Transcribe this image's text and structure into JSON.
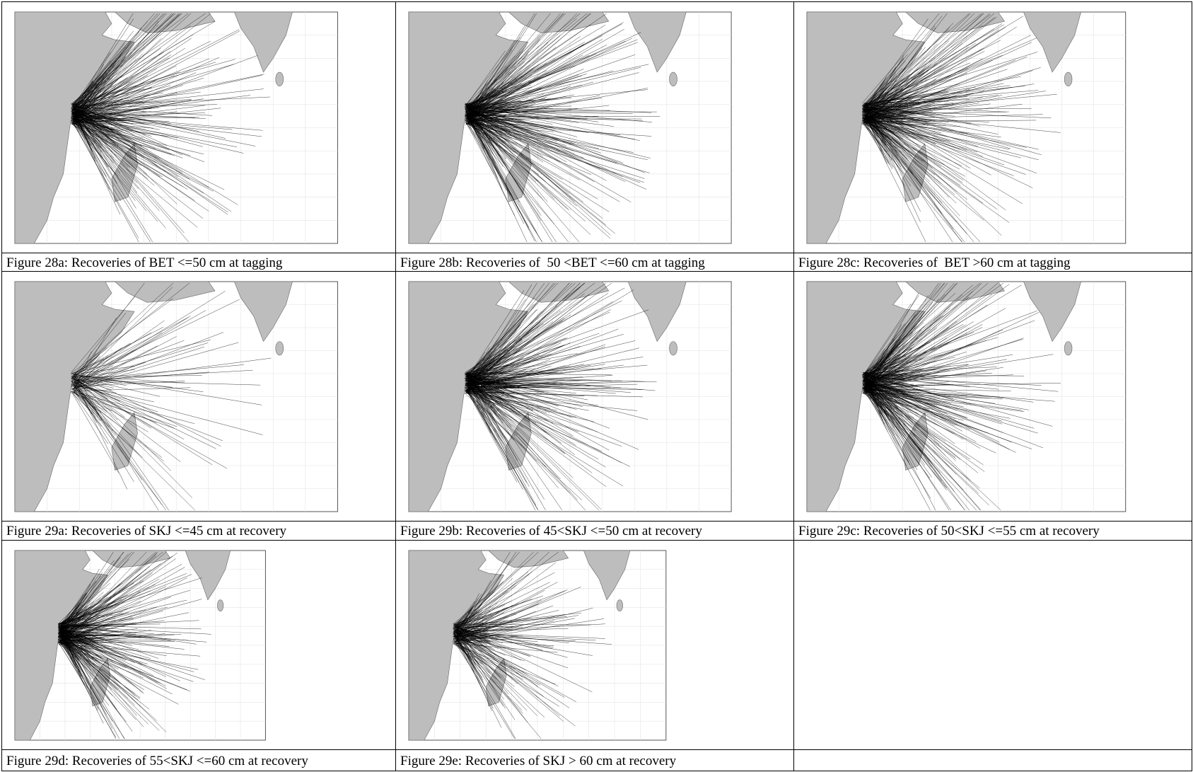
{
  "table": {
    "rows": [
      [
        "Figure 28a: Recoveries of BET <=50 cm at tagging",
        "Figure 28b: Recoveries of  50 <BET <=60 cm at tagging",
        "Figure 28c: Recoveries of  BET >60 cm at tagging"
      ],
      [
        "Figure 29a: Recoveries of SKJ <=45 cm at recovery",
        "Figure 29b: Recoveries of 45<SKJ <=50 cm at recovery",
        "Figure 29c: Recoveries of 50<SKJ <=55 cm at recovery"
      ],
      [
        "Figure 29d: Recoveries of 55<SKJ <=60 cm at recovery",
        "Figure 29e: Recoveries of SKJ > 60 cm at recovery"
      ]
    ]
  }
}
